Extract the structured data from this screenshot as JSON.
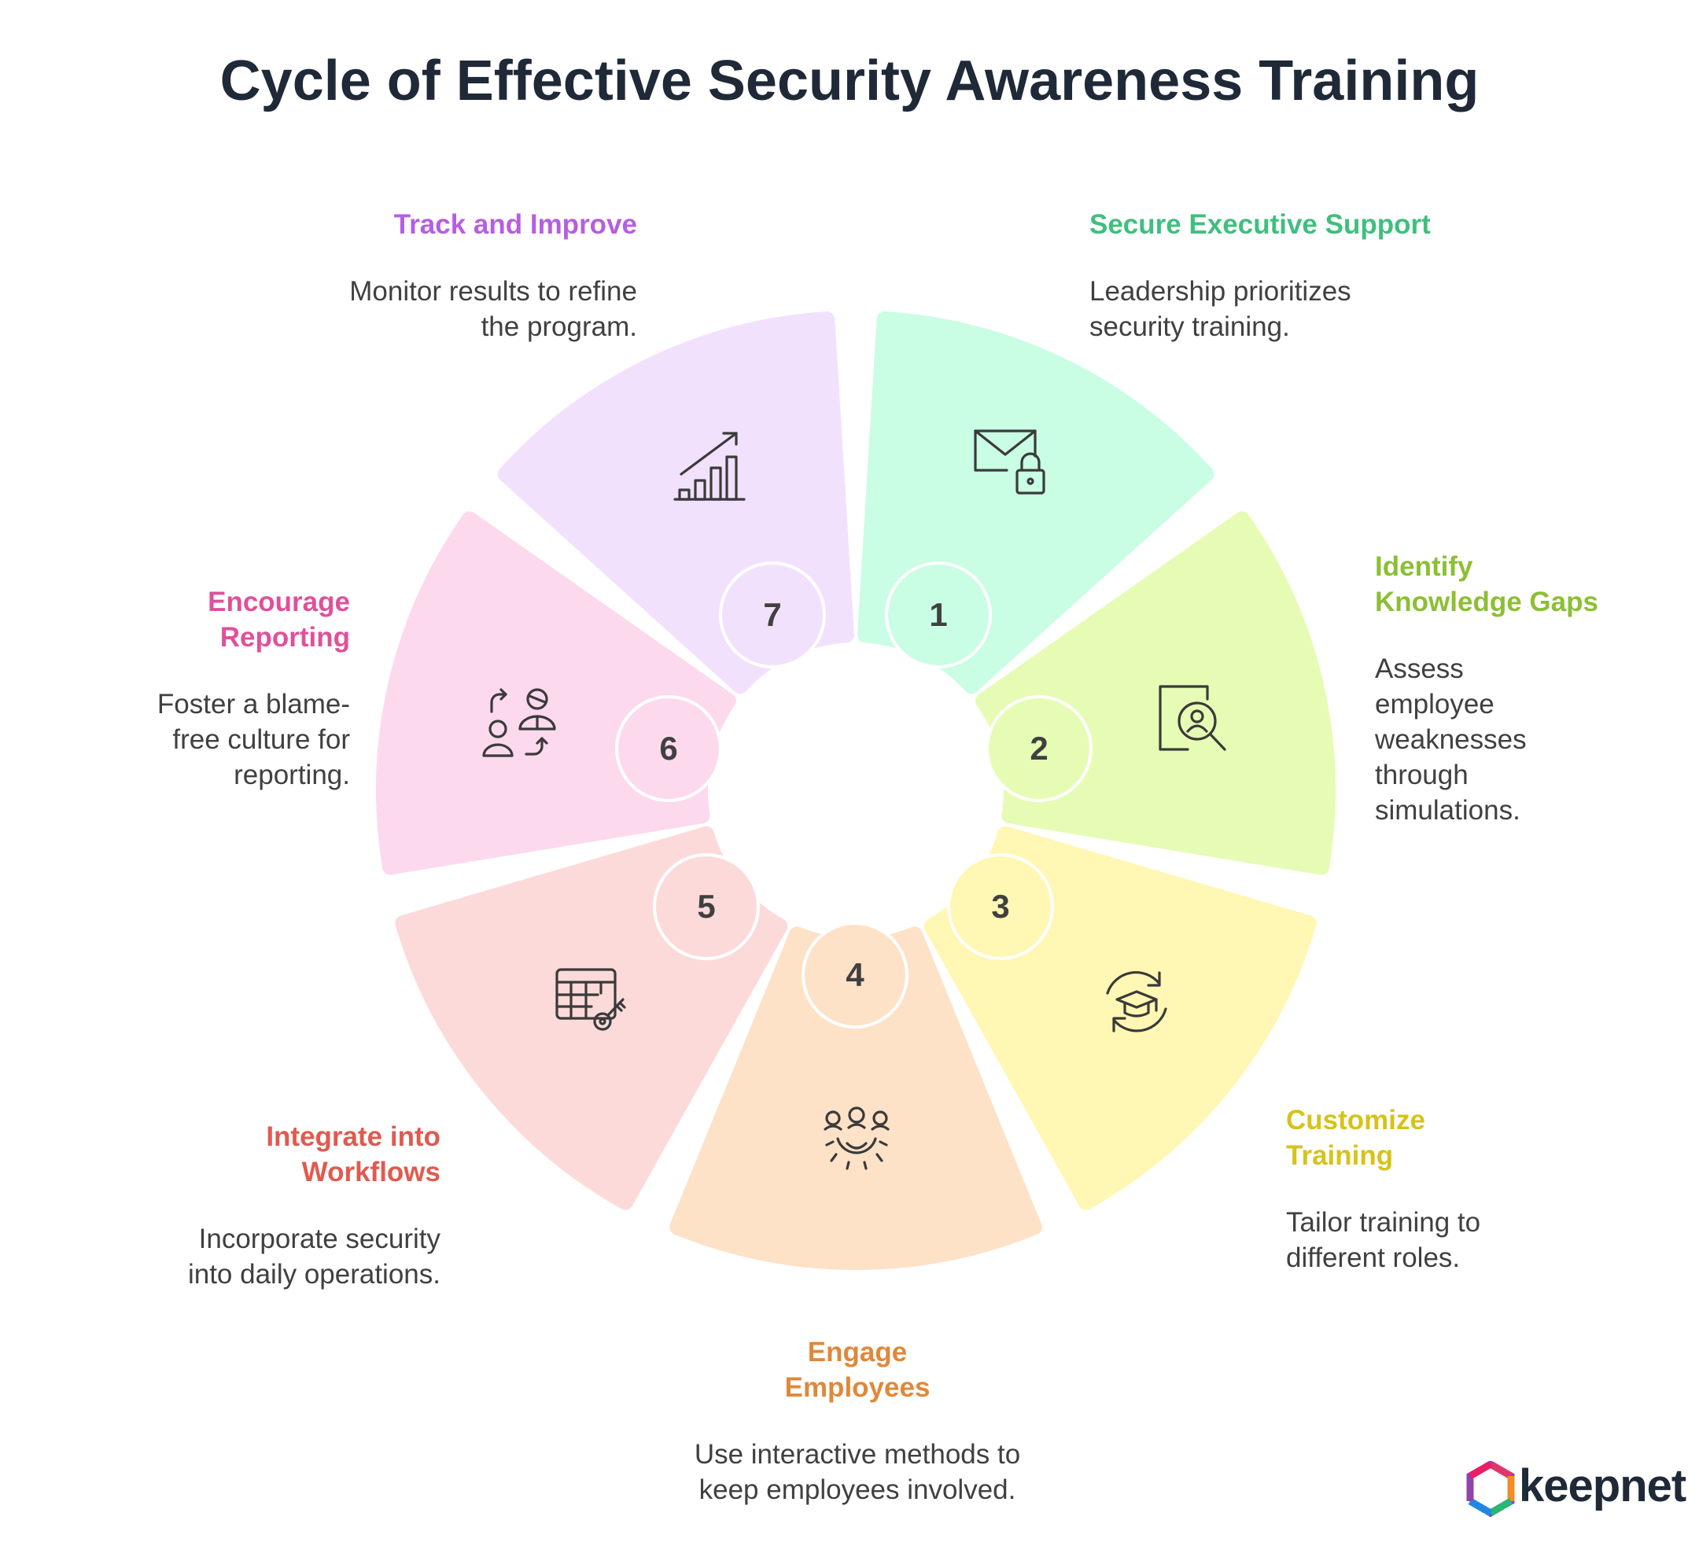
{
  "title": "Cycle of Effective Security Awareness Training",
  "steps": [
    {
      "number": "1",
      "heading": "Secure Executive Support",
      "description": "Leadership prioritizes security training.",
      "color": "#c9fde4",
      "heading_color": "#3fbf7f",
      "icon": "mail-lock-icon"
    },
    {
      "number": "2",
      "heading": "Identify Knowledge Gaps",
      "description": "Assess employee weaknesses through simulations.",
      "color": "#e6fcb5",
      "heading_color": "#8cbf34",
      "icon": "profile-search-icon"
    },
    {
      "number": "3",
      "heading": "Customize Training",
      "description": "Tailor training to different roles.",
      "color": "#fff7b3",
      "heading_color": "#d6c31a",
      "icon": "graduation-cycle-icon"
    },
    {
      "number": "4",
      "heading": "Engage Employees",
      "description": "Use interactive methods to keep employees involved.",
      "color": "#fde2c7",
      "heading_color": "#e0883a",
      "icon": "team-gear-icon"
    },
    {
      "number": "5",
      "heading": "Integrate into Workflows",
      "description": "Incorporate security into daily operations.",
      "color": "#fddada",
      "heading_color": "#e05a4f",
      "icon": "table-key-icon"
    },
    {
      "number": "6",
      "heading": "Encourage Reporting",
      "description": "Foster a blame-free culture for reporting.",
      "color": "#fdd9ee",
      "heading_color": "#e0509a",
      "icon": "people-exchange-icon"
    },
    {
      "number": "7",
      "heading": "Track and Improve",
      "description": "Monitor results to refine the program.",
      "color": "#f2e1fd",
      "heading_color": "#b65ee0",
      "icon": "growth-chart-icon"
    }
  ],
  "logo": {
    "text": "keepnet"
  }
}
